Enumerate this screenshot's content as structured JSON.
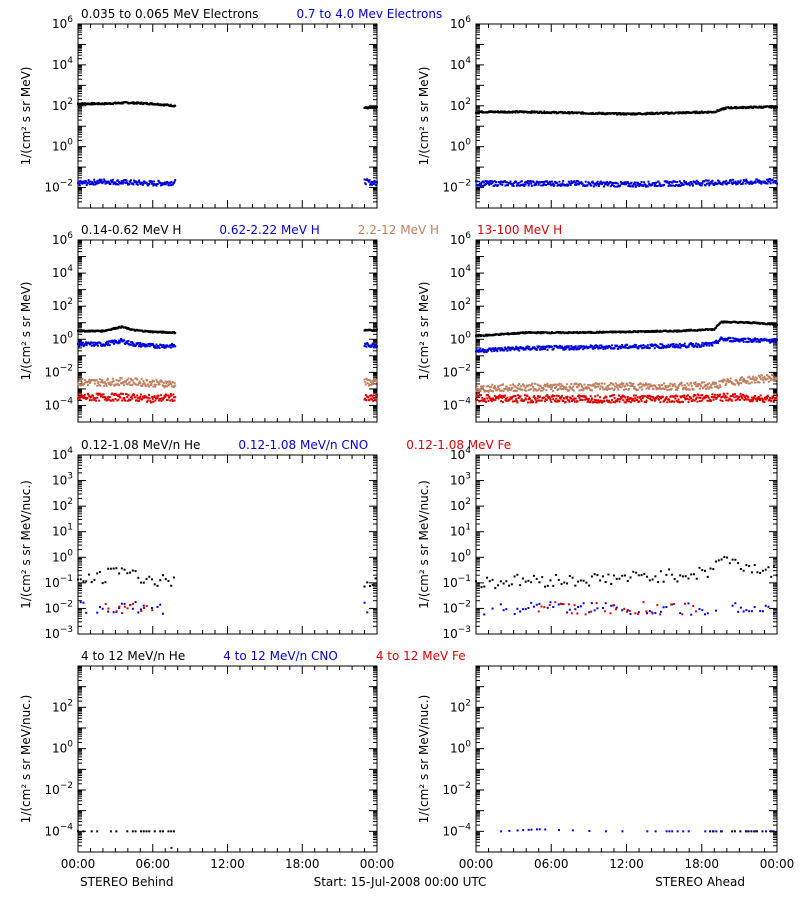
{
  "colors": {
    "black": "#000000",
    "blue": "#0000e0",
    "tan": "#c08060",
    "red": "#e00000"
  },
  "x_tick_labels": [
    "00:00",
    "06:00",
    "12:00",
    "18:00",
    "00:00"
  ],
  "footer": {
    "left": "STEREO Behind",
    "center": "Start: 15-Jul-2008 00:00 UTC",
    "right": "STEREO Ahead"
  },
  "chart_data": [
    {
      "type": "scatter",
      "row": 1,
      "legend": [
        {
          "text": "0.035 to 0.065 MeV Electrons",
          "color": "black"
        },
        {
          "text": "0.7 to 4.0 Mev Electrons",
          "color": "blue"
        }
      ],
      "ylabel": "1/(cm² s sr MeV)",
      "yscale": "log",
      "ylim_exp": [
        -3,
        6
      ],
      "yticks_exp": [
        -2,
        0,
        2,
        4,
        6
      ],
      "xlabel": "",
      "xlim_hours": [
        0,
        24
      ],
      "panels": [
        {
          "spacecraft": "STEREO Behind",
          "series": [
            {
              "color": "black",
              "segments": [
                {
                  "x": [
                    0,
                    2,
                    4,
                    6,
                    7.8
                  ],
                  "log_y": [
                    2.1,
                    2.1,
                    2.15,
                    2.1,
                    2.0
                  ]
                },
                {
                  "x": [
                    23,
                    24
                  ],
                  "log_y": [
                    1.9,
                    1.9
                  ]
                }
              ]
            },
            {
              "color": "blue",
              "segments": [
                {
                  "x": [
                    0,
                    2,
                    4,
                    6,
                    7.8
                  ],
                  "log_y": [
                    -1.8,
                    -1.7,
                    -1.75,
                    -1.8,
                    -1.75
                  ]
                },
                {
                  "x": [
                    23,
                    24
                  ],
                  "log_y": [
                    -1.7,
                    -1.8
                  ]
                }
              ]
            }
          ]
        },
        {
          "spacecraft": "STEREO Ahead",
          "series": [
            {
              "color": "black",
              "segments": [
                {
                  "x": [
                    0,
                    4,
                    8,
                    12,
                    16,
                    19,
                    20,
                    24
                  ],
                  "log_y": [
                    1.7,
                    1.7,
                    1.65,
                    1.6,
                    1.65,
                    1.7,
                    1.9,
                    1.95
                  ]
                }
              ]
            },
            {
              "color": "blue",
              "segments": [
                {
                  "x": [
                    0,
                    4,
                    8,
                    12,
                    16,
                    20,
                    24
                  ],
                  "log_y": [
                    -1.8,
                    -1.8,
                    -1.8,
                    -1.85,
                    -1.8,
                    -1.75,
                    -1.7
                  ]
                }
              ]
            }
          ]
        }
      ]
    },
    {
      "type": "scatter",
      "row": 2,
      "legend": [
        {
          "text": "0.14-0.62 MeV H",
          "color": "black"
        },
        {
          "text": "0.62-2.22 MeV H",
          "color": "blue"
        },
        {
          "text": "2.2-12 MeV H",
          "color": "tan"
        },
        {
          "text": "13-100 MeV H",
          "color": "red"
        }
      ],
      "ylabel": "1/(cm² s sr MeV)",
      "yscale": "log",
      "ylim_exp": [
        -5,
        6
      ],
      "yticks_exp": [
        -4,
        -2,
        0,
        2,
        4,
        6
      ],
      "xlabel": "",
      "xlim_hours": [
        0,
        24
      ],
      "panels": [
        {
          "spacecraft": "STEREO Behind",
          "series": [
            {
              "color": "black",
              "segments": [
                {
                  "x": [
                    0,
                    2,
                    3.5,
                    4.5,
                    6,
                    7.8
                  ],
                  "log_y": [
                    0.5,
                    0.5,
                    0.75,
                    0.55,
                    0.45,
                    0.4
                  ]
                },
                {
                  "x": [
                    23,
                    24
                  ],
                  "log_y": [
                    0.55,
                    0.55
                  ]
                }
              ]
            },
            {
              "color": "blue",
              "segments": [
                {
                  "x": [
                    0,
                    2,
                    3.5,
                    4.5,
                    6,
                    7.8
                  ],
                  "log_y": [
                    -0.3,
                    -0.3,
                    -0.1,
                    -0.3,
                    -0.4,
                    -0.4
                  ]
                },
                {
                  "x": [
                    23,
                    24
                  ],
                  "log_y": [
                    -0.35,
                    -0.35
                  ]
                }
              ]
            },
            {
              "color": "tan",
              "segments": [
                {
                  "x": [
                    0,
                    2,
                    4,
                    6,
                    7.8
                  ],
                  "log_y": [
                    -2.6,
                    -2.6,
                    -2.55,
                    -2.65,
                    -2.7
                  ]
                },
                {
                  "x": [
                    23,
                    24
                  ],
                  "log_y": [
                    -2.6,
                    -2.6
                  ]
                }
              ]
            },
            {
              "color": "red",
              "segments": [
                {
                  "x": [
                    0,
                    2,
                    4,
                    6,
                    7.8
                  ],
                  "log_y": [
                    -3.5,
                    -3.5,
                    -3.5,
                    -3.6,
                    -3.5
                  ]
                },
                {
                  "x": [
                    23,
                    24
                  ],
                  "log_y": [
                    -3.6,
                    -3.6
                  ]
                }
              ]
            }
          ]
        },
        {
          "spacecraft": "STEREO Ahead",
          "series": [
            {
              "color": "black",
              "segments": [
                {
                  "x": [
                    0,
                    2,
                    4,
                    8,
                    12,
                    16,
                    19,
                    19.5,
                    22,
                    24
                  ],
                  "log_y": [
                    0.2,
                    0.3,
                    0.4,
                    0.4,
                    0.45,
                    0.5,
                    0.6,
                    1.05,
                    1.0,
                    0.9
                  ]
                }
              ]
            },
            {
              "color": "blue",
              "segments": [
                {
                  "x": [
                    0,
                    2,
                    4,
                    8,
                    12,
                    16,
                    19,
                    19.5,
                    22,
                    24
                  ],
                  "log_y": [
                    -0.7,
                    -0.6,
                    -0.55,
                    -0.5,
                    -0.45,
                    -0.4,
                    -0.3,
                    0.0,
                    -0.05,
                    -0.1
                  ]
                }
              ]
            },
            {
              "color": "tan",
              "segments": [
                {
                  "x": [
                    0,
                    4,
                    8,
                    12,
                    16,
                    19,
                    20,
                    24
                  ],
                  "log_y": [
                    -3.0,
                    -2.9,
                    -2.9,
                    -2.85,
                    -2.85,
                    -2.8,
                    -2.6,
                    -2.3
                  ]
                }
              ]
            },
            {
              "color": "red",
              "segments": [
                {
                  "x": [
                    0,
                    4,
                    8,
                    12,
                    16,
                    20,
                    24
                  ],
                  "log_y": [
                    -3.6,
                    -3.6,
                    -3.6,
                    -3.6,
                    -3.6,
                    -3.5,
                    -3.6
                  ]
                }
              ]
            }
          ]
        }
      ]
    },
    {
      "type": "scatter",
      "row": 3,
      "legend": [
        {
          "text": "0.12-1.08 MeV/n He",
          "color": "black"
        },
        {
          "text": "0.12-1.08 MeV/n CNO",
          "color": "blue"
        },
        {
          "text": "0.12-1.08 MeV Fe",
          "color": "red"
        }
      ],
      "ylabel": "1/(cm² s sr MeV/nuc.)",
      "yscale": "log",
      "ylim_exp": [
        -3,
        4
      ],
      "yticks_exp": [
        -3,
        -2,
        -1,
        0,
        1,
        2,
        3,
        4
      ],
      "xlabel": "",
      "xlim_hours": [
        0,
        24
      ],
      "panels": [
        {
          "spacecraft": "STEREO Behind",
          "series": [
            {
              "color": "black",
              "segments": [
                {
                  "x": [
                    0,
                    2,
                    3.5,
                    4.5,
                    6,
                    7.8
                  ],
                  "log_y": [
                    -0.9,
                    -0.8,
                    -0.4,
                    -0.7,
                    -0.9,
                    -1.0
                  ]
                },
                {
                  "x": [
                    23,
                    24
                  ],
                  "log_y": [
                    -0.9,
                    -1.0
                  ]
                }
              ]
            },
            {
              "color": "blue",
              "segments": [
                {
                  "x": [
                    0,
                    4,
                    7.8
                  ],
                  "log_y": [
                    -2.0,
                    -2.0,
                    -2.0
                  ]
                },
                {
                  "x": [
                    23,
                    24
                  ],
                  "log_y": [
                    -2.0,
                    -2.0
                  ]
                }
              ]
            },
            {
              "color": "red",
              "segments": [
                {
                  "x": [
                    2,
                    4,
                    6
                  ],
                  "log_y": [
                    -2.0,
                    -2.0,
                    -2.0
                  ]
                }
              ]
            }
          ]
        },
        {
          "spacecraft": "STEREO Ahead",
          "series": [
            {
              "color": "black",
              "segments": [
                {
                  "x": [
                    0,
                    4,
                    8,
                    12,
                    16,
                    18.5,
                    19.5,
                    21,
                    24
                  ],
                  "log_y": [
                    -1.0,
                    -0.9,
                    -0.9,
                    -0.8,
                    -0.7,
                    -0.6,
                    0.0,
                    -0.3,
                    -0.6
                  ]
                }
              ]
            },
            {
              "color": "blue",
              "segments": [
                {
                  "x": [
                    0,
                    6,
                    12,
                    18,
                    24
                  ],
                  "log_y": [
                    -2.0,
                    -2.0,
                    -2.0,
                    -2.0,
                    -2.0
                  ]
                }
              ]
            },
            {
              "color": "red",
              "segments": [
                {
                  "x": [
                    5,
                    10,
                    15,
                    19
                  ],
                  "log_y": [
                    -2.0,
                    -2.0,
                    -2.0,
                    -2.0
                  ]
                }
              ]
            }
          ]
        }
      ]
    },
    {
      "type": "scatter",
      "row": 4,
      "legend": [
        {
          "text": "4 to 12 MeV/n He",
          "color": "black"
        },
        {
          "text": "4 to 12 MeV/n CNO",
          "color": "blue"
        },
        {
          "text": "4 to 12 MeV Fe",
          "color": "red"
        }
      ],
      "ylabel": "1/(cm² s sr MeV/nuc.)",
      "yscale": "log",
      "ylim_exp": [
        -5,
        4
      ],
      "yticks_exp": [
        -4,
        -2,
        0,
        2
      ],
      "xlabel": "",
      "xlim_hours": [
        0,
        24
      ],
      "panels": [
        {
          "spacecraft": "STEREO Behind",
          "series": [
            {
              "color": "black",
              "segments": [
                {
                  "x": [
                    0,
                    3,
                    5,
                    7.8
                  ],
                  "log_y": [
                    -4.0,
                    -4.0,
                    -4.0,
                    -4.0
                  ]
                }
              ]
            },
            {
              "color": "blue",
              "segments": [
                {
                  "x": [
                    7.5
                  ],
                  "log_y": [
                    -4.8
                  ]
                }
              ]
            }
          ]
        },
        {
          "spacecraft": "STEREO Ahead",
          "series": [
            {
              "color": "black",
              "segments": [
                {
                  "x": [
                    18,
                    20,
                    24
                  ],
                  "log_y": [
                    -4.0,
                    -4.0,
                    -4.0
                  ]
                }
              ]
            },
            {
              "color": "blue",
              "segments": [
                {
                  "x": [
                    2,
                    5,
                    10,
                    13,
                    16,
                    20,
                    24
                  ],
                  "log_y": [
                    -4.0,
                    -3.9,
                    -4.0,
                    -4.0,
                    -4.0,
                    -4.0,
                    -4.0
                  ]
                }
              ]
            }
          ]
        }
      ]
    }
  ]
}
